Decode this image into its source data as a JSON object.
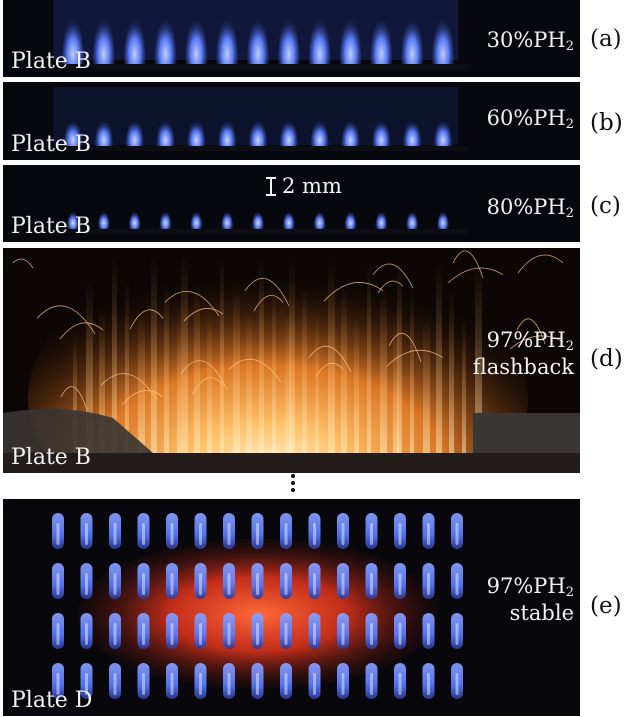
{
  "panels": [
    {
      "tag": "(a)",
      "plate": "Plate B",
      "condition_pct": "30%PH",
      "condition_sub": "2",
      "condition_note": ""
    },
    {
      "tag": "(b)",
      "plate": "Plate B",
      "condition_pct": "60%PH",
      "condition_sub": "2",
      "condition_note": ""
    },
    {
      "tag": "(c)",
      "plate": "Plate B",
      "condition_pct": "80%PH",
      "condition_sub": "2",
      "condition_note": "",
      "scale_bar": "2 mm"
    },
    {
      "tag": "(d)",
      "plate": "Plate B",
      "condition_pct": "97%PH",
      "condition_sub": "2",
      "condition_note": "flashback"
    },
    {
      "tag": "(e)",
      "plate": "Plate D",
      "condition_pct": "97%PH",
      "condition_sub": "2",
      "condition_note": "stable"
    }
  ],
  "colors": {
    "flame_blue": "#5a7dff",
    "flashback_orange": "#ff9a3a",
    "glow_red": "#ff3a1e",
    "background": "#07080d"
  }
}
